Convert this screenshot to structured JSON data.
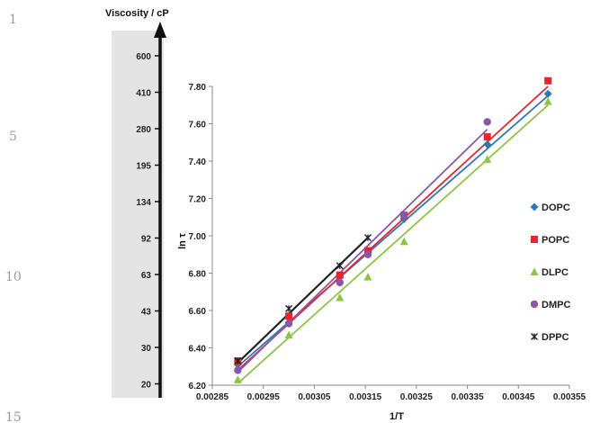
{
  "line_numbers": [
    "1",
    "5",
    "10",
    "15"
  ],
  "viscosity_scale": {
    "label": "Viscosity / cP",
    "ticks": [
      "600",
      "410",
      "280",
      "195",
      "134",
      "92",
      "63",
      "43",
      "30",
      "20"
    ]
  },
  "chart_data": {
    "type": "scatter",
    "xlabel": "1/T",
    "ylabel": "ln τ",
    "xlim": [
      0.00285,
      0.00355
    ],
    "ylim": [
      6.2,
      7.8
    ],
    "x_ticks": [
      "0.00285",
      "0.00295",
      "0.00305",
      "0.00315",
      "0.00325",
      "0.00335",
      "0.00345",
      "0.00355"
    ],
    "y_ticks": [
      "6.20",
      "6.40",
      "6.60",
      "6.80",
      "7.00",
      "7.20",
      "7.40",
      "7.60",
      "7.80"
    ],
    "grid": false,
    "legend": "right",
    "series": [
      {
        "name": "DOPC",
        "color": "#2e78b8",
        "marker": "diamond",
        "x": [
          0.0029,
          0.003,
          0.0031,
          0.003155,
          0.003226,
          0.003389,
          0.003508
        ],
        "y": [
          6.31,
          6.56,
          6.78,
          6.91,
          7.09,
          7.49,
          7.76
        ],
        "fit": [
          [
            0.0029,
            6.3
          ],
          [
            0.003508,
            7.75
          ]
        ]
      },
      {
        "name": "POPC",
        "color": "#e8252f",
        "marker": "square",
        "x": [
          0.0029,
          0.003,
          0.0031,
          0.003155,
          0.003226,
          0.003389,
          0.003508
        ],
        "y": [
          6.33,
          6.57,
          6.79,
          6.92,
          7.11,
          7.53,
          7.83
        ],
        "fit": [
          [
            0.0029,
            6.28
          ],
          [
            0.003508,
            7.8
          ]
        ]
      },
      {
        "name": "DLPC",
        "color": "#8cc63f",
        "marker": "triangle",
        "x": [
          0.0029,
          0.003,
          0.0031,
          0.003155,
          0.003226,
          0.003389,
          0.003508
        ],
        "y": [
          6.23,
          6.47,
          6.67,
          6.78,
          6.97,
          7.41,
          7.72
        ],
        "fit": [
          [
            0.0029,
            6.21
          ],
          [
            0.003508,
            7.7
          ]
        ]
      },
      {
        "name": "DMPC",
        "color": "#8a57a8",
        "marker": "circle",
        "x": [
          0.0029,
          0.003,
          0.0031,
          0.003155,
          0.003226,
          0.003389
        ],
        "y": [
          6.28,
          6.53,
          6.75,
          6.9,
          7.11,
          7.61
        ],
        "fit": [
          [
            0.0029,
            6.27
          ],
          [
            0.003389,
            7.57
          ]
        ]
      },
      {
        "name": "DPPC",
        "color": "#222222",
        "marker": "x",
        "x": [
          0.0029,
          0.003,
          0.0031,
          0.003155
        ],
        "y": [
          6.33,
          6.61,
          6.84,
          6.99
        ],
        "fit": [
          [
            0.0029,
            6.32
          ],
          [
            0.003155,
            6.99
          ]
        ]
      }
    ]
  }
}
